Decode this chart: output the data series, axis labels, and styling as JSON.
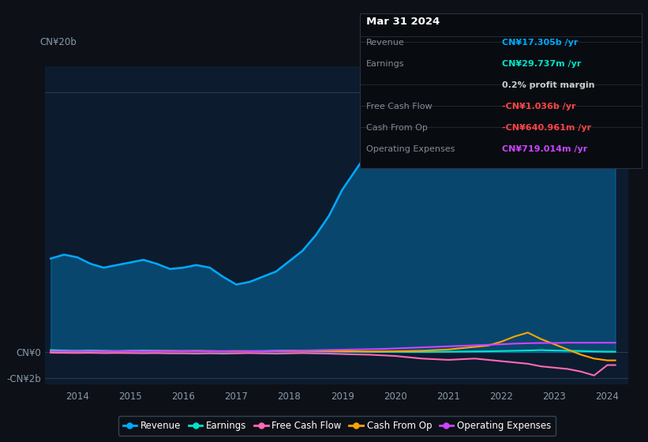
{
  "bg_color": "#0d1117",
  "plot_bg_color": "#0d1b2e",
  "title": "Mar 31 2024",
  "x_years": [
    2013.5,
    2013.75,
    2014,
    2014.25,
    2014.5,
    2014.75,
    2015,
    2015.25,
    2015.5,
    2015.75,
    2016,
    2016.25,
    2016.5,
    2016.75,
    2017,
    2017.25,
    2017.5,
    2017.75,
    2018,
    2018.25,
    2018.5,
    2018.75,
    2019,
    2019.25,
    2019.5,
    2019.75,
    2020,
    2020.25,
    2020.5,
    2020.75,
    2021,
    2021.25,
    2021.5,
    2021.75,
    2022,
    2022.25,
    2022.5,
    2022.75,
    2023,
    2023.25,
    2023.5,
    2023.75,
    2024,
    2024.15
  ],
  "revenue": [
    7.2,
    7.5,
    7.3,
    6.8,
    6.5,
    6.7,
    6.9,
    7.1,
    6.8,
    6.4,
    6.5,
    6.7,
    6.5,
    5.8,
    5.2,
    5.4,
    5.8,
    6.2,
    7.0,
    7.8,
    9.0,
    10.5,
    12.5,
    14.0,
    15.5,
    16.8,
    18.0,
    18.5,
    18.8,
    18.6,
    18.2,
    16.5,
    15.2,
    14.8,
    15.5,
    18.0,
    20.5,
    21.5,
    21.0,
    19.5,
    17.5,
    16.0,
    17.3,
    17.3
  ],
  "earnings": [
    0.15,
    0.12,
    0.1,
    0.12,
    0.1,
    0.08,
    0.1,
    0.12,
    0.1,
    0.08,
    0.07,
    0.08,
    0.06,
    0.05,
    0.06,
    0.07,
    0.08,
    0.1,
    0.12,
    0.1,
    0.08,
    0.06,
    0.05,
    0.04,
    0.03,
    0.02,
    0.02,
    0.01,
    0.01,
    0.02,
    0.03,
    0.04,
    0.05,
    0.06,
    0.08,
    0.1,
    0.12,
    0.15,
    0.12,
    0.1,
    0.08,
    0.05,
    0.03,
    0.03
  ],
  "free_cash_flow": [
    -0.05,
    -0.06,
    -0.07,
    -0.06,
    -0.08,
    -0.07,
    -0.08,
    -0.09,
    -0.08,
    -0.1,
    -0.1,
    -0.12,
    -0.1,
    -0.12,
    -0.1,
    -0.08,
    -0.1,
    -0.12,
    -0.1,
    -0.08,
    -0.1,
    -0.12,
    -0.15,
    -0.18,
    -0.2,
    -0.25,
    -0.3,
    -0.4,
    -0.5,
    -0.55,
    -0.6,
    -0.55,
    -0.5,
    -0.6,
    -0.7,
    -0.8,
    -0.9,
    -1.1,
    -1.2,
    -1.3,
    -1.5,
    -1.8,
    -1.0,
    -1.0
  ],
  "cash_from_op": [
    0.05,
    0.06,
    0.05,
    0.06,
    0.07,
    0.06,
    0.08,
    0.07,
    0.08,
    0.09,
    0.08,
    0.09,
    0.08,
    0.07,
    0.08,
    0.07,
    0.06,
    0.07,
    0.08,
    0.09,
    0.1,
    0.08,
    0.06,
    0.05,
    0.04,
    0.05,
    0.06,
    0.08,
    0.1,
    0.15,
    0.2,
    0.3,
    0.4,
    0.5,
    0.8,
    1.2,
    1.5,
    1.0,
    0.6,
    0.2,
    -0.2,
    -0.5,
    -0.64,
    -0.64
  ],
  "operating_expenses": [
    0.05,
    0.06,
    0.05,
    0.06,
    0.05,
    0.06,
    0.07,
    0.06,
    0.07,
    0.06,
    0.07,
    0.06,
    0.07,
    0.06,
    0.05,
    0.06,
    0.07,
    0.08,
    0.1,
    0.12,
    0.14,
    0.16,
    0.18,
    0.2,
    0.22,
    0.24,
    0.28,
    0.32,
    0.36,
    0.4,
    0.44,
    0.48,
    0.52,
    0.56,
    0.6,
    0.65,
    0.68,
    0.7,
    0.7,
    0.72,
    0.72,
    0.72,
    0.72,
    0.72
  ],
  "ylim_top": 22,
  "ylim_bottom": -2.5,
  "ytick_top_label": "CN¥20b",
  "ytick_zero_label": "CN¥0",
  "ytick_neg_label": "-CN¥2b",
  "xtick_labels": [
    "2014",
    "2015",
    "2016",
    "2017",
    "2018",
    "2019",
    "2020",
    "2021",
    "2022",
    "2023",
    "2024"
  ],
  "xtick_values": [
    2014,
    2015,
    2016,
    2017,
    2018,
    2019,
    2020,
    2021,
    2022,
    2023,
    2024
  ],
  "line_colors": {
    "revenue": "#00aaff",
    "earnings": "#00e5cc",
    "free_cash_flow": "#ff69b4",
    "cash_from_op": "#ffa500",
    "operating_expenses": "#cc44ff"
  },
  "legend_entries": [
    "Revenue",
    "Earnings",
    "Free Cash Flow",
    "Cash From Op",
    "Operating Expenses"
  ],
  "legend_colors": [
    "#00aaff",
    "#00e5cc",
    "#ff69b4",
    "#ffa500",
    "#cc44ff"
  ],
  "box_rows": [
    {
      "label": "Revenue",
      "value": "CN¥17.305b /yr",
      "lcolor": "#888899",
      "vcolor": "#00aaff"
    },
    {
      "label": "Earnings",
      "value": "CN¥29.737m /yr",
      "lcolor": "#888899",
      "vcolor": "#00e5cc"
    },
    {
      "label": "",
      "value": "0.2% profit margin",
      "lcolor": "#888899",
      "vcolor": "#cccccc"
    },
    {
      "label": "Free Cash Flow",
      "value": "-CN¥1.036b /yr",
      "lcolor": "#888899",
      "vcolor": "#ff4444"
    },
    {
      "label": "Cash From Op",
      "value": "-CN¥640.961m /yr",
      "lcolor": "#888899",
      "vcolor": "#ff4444"
    },
    {
      "label": "Operating Expenses",
      "value": "CN¥719.014m /yr",
      "lcolor": "#888899",
      "vcolor": "#cc44ff"
    }
  ]
}
